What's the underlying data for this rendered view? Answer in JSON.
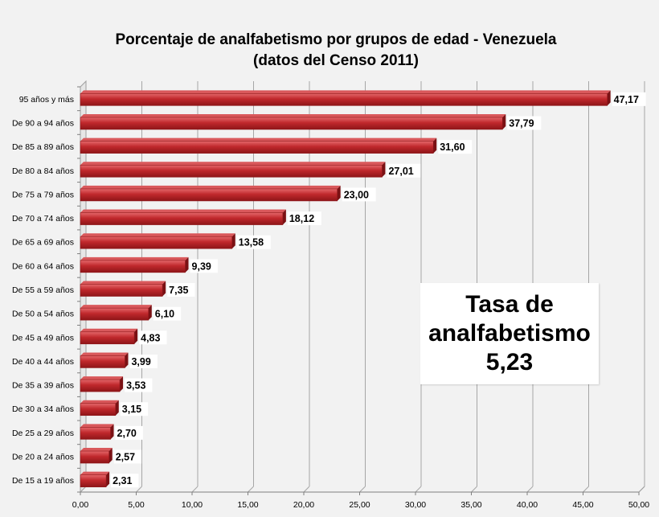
{
  "chart_data": {
    "type": "bar",
    "orientation": "horizontal",
    "title_line1": "Porcentaje de analfabetismo por grupos de edad - Venezuela",
    "title_line2": "(datos del Censo 2011)",
    "categories": [
      "95 años y más",
      "De 90 a 94 años",
      "De 85 a 89 años",
      "De 80 a 84 años",
      "De 75 a 79 años",
      "De 70 a 74 años",
      "De 65 a 69 años",
      "De 60 a 64 años",
      "De 55 a 59 años",
      "De 50 a 54 años",
      "De 45 a 49 años",
      "De 40 a 44 años",
      "De 35 a 39 años",
      "De 30 a 34 años",
      "De 25 a 29 años",
      "De 20 a 24 años",
      "De 15 a 19 años"
    ],
    "values": [
      47.17,
      37.79,
      31.6,
      27.01,
      23.0,
      18.12,
      13.58,
      9.39,
      7.35,
      6.1,
      4.83,
      3.99,
      3.53,
      3.15,
      2.7,
      2.57,
      2.31
    ],
    "data_labels": [
      "47,17",
      "37,79",
      "31,60",
      "27,01",
      "23,00",
      "18,12",
      "13,58",
      "9,39",
      "7,35",
      "6,10",
      "4,83",
      "3,99",
      "3,53",
      "3,15",
      "2,70",
      "2,57",
      "2,31"
    ],
    "xlim": [
      0,
      50
    ],
    "x_ticks": [
      0,
      5,
      10,
      15,
      20,
      25,
      30,
      35,
      40,
      45,
      50
    ],
    "x_tick_labels": [
      "0,00",
      "5,00",
      "10,00",
      "15,00",
      "20,00",
      "25,00",
      "30,00",
      "35,00",
      "40,00",
      "45,00",
      "50,00"
    ],
    "grid": true,
    "legend": "none",
    "bar_color": "#c0282c"
  },
  "callout": {
    "line1": "Tasa de",
    "line2": "analfabetismo",
    "line3": "5,23"
  }
}
